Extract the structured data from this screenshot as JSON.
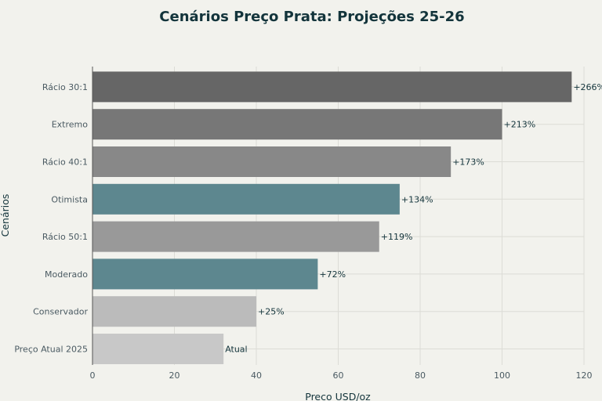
{
  "chart_data": {
    "type": "bar",
    "orientation": "horizontal",
    "title": "Cenários Preço Prata: Projeções 25-26",
    "xlabel": "Preco USD/oz",
    "ylabel": "Cenários",
    "xlim": [
      0,
      120
    ],
    "xticks": [
      0,
      20,
      40,
      60,
      80,
      100,
      120
    ],
    "grid": true,
    "categories": [
      "Rácio 30:1",
      "Extremo",
      "Rácio 40:1",
      "Otimista",
      "Rácio 50:1",
      "Moderado",
      "Conservador",
      "Preço Atual 2025"
    ],
    "values": [
      117,
      100,
      87.5,
      75,
      70,
      55,
      40,
      32
    ],
    "data_labels": [
      "+266%",
      "+213%",
      "+173%",
      "+134%",
      "+119%",
      "+72%",
      "+25%",
      "Atual"
    ],
    "colors": [
      "#666666",
      "#777777",
      "#888888",
      "#5d878f",
      "#999999",
      "#5d878f",
      "#bbbbbb",
      "#c8c8c8"
    ]
  }
}
